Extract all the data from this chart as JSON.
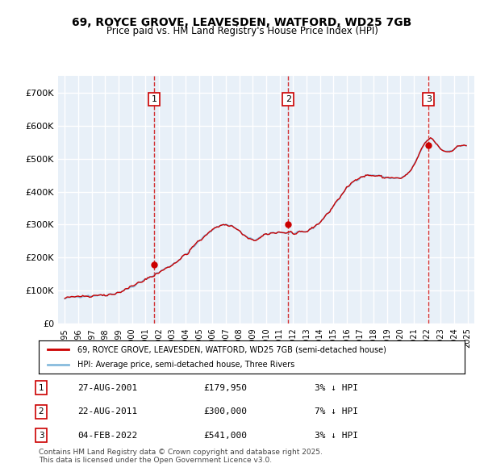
{
  "title": "69, ROYCE GROVE, LEAVESDEN, WATFORD, WD25 7GB",
  "subtitle": "Price paid vs. HM Land Registry's House Price Index (HPI)",
  "hpi_label": "HPI: Average price, semi-detached house, Three Rivers",
  "price_label": "69, ROYCE GROVE, LEAVESDEN, WATFORD, WD25 7GB (semi-detached house)",
  "sales": [
    {
      "num": 1,
      "date": "2001-08-27",
      "date_str": "27-AUG-2001",
      "price": 179950,
      "pct": "3%",
      "dir": "↓"
    },
    {
      "num": 2,
      "date": "2011-08-22",
      "date_str": "22-AUG-2011",
      "price": 300000,
      "pct": "7%",
      "dir": "↓"
    },
    {
      "num": 3,
      "date": "2022-02-04",
      "date_str": "04-FEB-2022",
      "price": 541000,
      "pct": "3%",
      "dir": "↓"
    }
  ],
  "ylim": [
    0,
    750000
  ],
  "yticks": [
    0,
    100000,
    200000,
    300000,
    400000,
    500000,
    600000,
    700000
  ],
  "ytick_labels": [
    "£0",
    "£100K",
    "£200K",
    "£300K",
    "£400K",
    "£500K",
    "£600K",
    "£700K"
  ],
  "bg_color": "#e8f0f8",
  "plot_bg": "#e8f0f8",
  "grid_color": "#ffffff",
  "red_color": "#cc0000",
  "blue_color": "#88bbdd",
  "footnote": "Contains HM Land Registry data © Crown copyright and database right 2025.\nThis data is licensed under the Open Government Licence v3.0."
}
